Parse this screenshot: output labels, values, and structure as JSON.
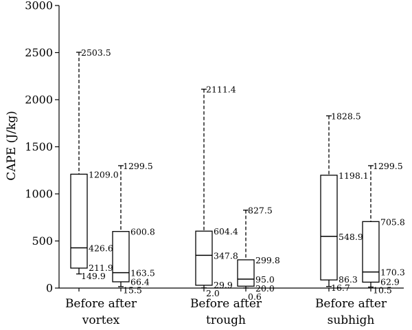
{
  "chart_data": {
    "type": "box",
    "ylabel": "CAPE (J/kg)",
    "ylim": [
      0,
      3000
    ],
    "yticks": [
      0,
      500,
      1000,
      1500,
      2000,
      2500,
      3000
    ],
    "groups": [
      {
        "label_line1": "Before after",
        "label_line2": "vortex",
        "boxes": [
          {
            "whisker_high": 2503.5,
            "q3": 1209.0,
            "median": 426.6,
            "q1": 211.9,
            "whisker_low": 149.9,
            "labels": {
              "whisker_high": "2503.5",
              "q3": "1209.0",
              "median": "426.6",
              "q1": "211.9",
              "whisker_low": "149.9"
            }
          },
          {
            "whisker_high": 1299.5,
            "q3": 600.8,
            "median": 163.5,
            "q1": 66.4,
            "whisker_low": 15.5,
            "labels": {
              "whisker_high": "1299.5",
              "q3": "600.8",
              "median": "163.5",
              "q1": "66.4",
              "whisker_low": "15.5"
            }
          }
        ]
      },
      {
        "label_line1": "Before after",
        "label_line2": "trough",
        "boxes": [
          {
            "whisker_high": 2111.4,
            "q3": 604.4,
            "median": 347.8,
            "q1": 29.9,
            "whisker_low": 2.0,
            "labels": {
              "whisker_high": "2111.4",
              "q3": "604.4",
              "median": "347.8",
              "q1": "29.9",
              "whisker_low": "2.0"
            }
          },
          {
            "whisker_high": 827.5,
            "q3": 299.8,
            "median": 95.0,
            "q1": 20.0,
            "whisker_low": 0.6,
            "labels": {
              "whisker_high": "827.5",
              "q3": "299.8",
              "median": "95.0",
              "q1": "20.0",
              "whisker_low": "0.6"
            }
          }
        ]
      },
      {
        "label_line1": "Before after",
        "label_line2": "subhigh",
        "boxes": [
          {
            "whisker_high": 1828.5,
            "q3": 1198.1,
            "median": 548.9,
            "q1": 86.3,
            "whisker_low": 16.7,
            "labels": {
              "whisker_high": "1828.5",
              "q3": "1198.1",
              "median": "548.9",
              "q1": "86.3",
              "whisker_low": "16.7"
            }
          },
          {
            "whisker_high": 1299.5,
            "q3": 705.8,
            "median": 170.3,
            "q1": 62.9,
            "whisker_low": 10.5,
            "labels": {
              "whisker_high": "1299.5",
              "q3": "705.8",
              "median": "170.3",
              "q1": "62.9",
              "whisker_low": "10.5"
            }
          }
        ]
      }
    ],
    "colors": {
      "line": "#000000",
      "background": "#ffffff"
    }
  }
}
